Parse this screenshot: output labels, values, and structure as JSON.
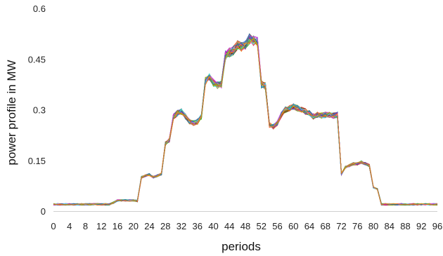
{
  "chart_data": {
    "type": "line",
    "title": "",
    "xlabel": "periods",
    "ylabel": "power profile in MW",
    "xlim": [
      0,
      96
    ],
    "ylim": [
      0,
      0.6
    ],
    "x_ticks": [
      0,
      4,
      8,
      12,
      16,
      20,
      24,
      28,
      32,
      36,
      40,
      44,
      48,
      52,
      56,
      60,
      64,
      68,
      72,
      76,
      80,
      84,
      88,
      92,
      96
    ],
    "y_ticks": [
      {
        "value": 0,
        "label": "0"
      },
      {
        "value": 0.15,
        "label": "0.15"
      },
      {
        "value": 0.3,
        "label": "0.3"
      },
      {
        "value": 0.45,
        "label": "0.45"
      },
      {
        "value": 0.6,
        "label": "0.6"
      }
    ],
    "grid": false,
    "legend": "none",
    "series_count": 30,
    "series_colors": [
      "#e6194b",
      "#3cb44b",
      "#4363d8",
      "#f58231",
      "#911eb4",
      "#46f0f0",
      "#f032e6",
      "#7fbf00",
      "#1f77b4",
      "#ff7f0e",
      "#2ca02c",
      "#d62728",
      "#9467bd",
      "#8c564b",
      "#e377c2",
      "#17becf",
      "#bcbd22",
      "#00a0b0",
      "#808000",
      "#800000"
    ],
    "mean_profile": {
      "x": [
        0,
        1,
        2,
        3,
        4,
        5,
        6,
        7,
        8,
        9,
        10,
        11,
        12,
        13,
        14,
        15,
        16,
        17,
        18,
        19,
        20,
        21,
        22,
        23,
        24,
        25,
        26,
        27,
        28,
        29,
        30,
        31,
        32,
        33,
        34,
        35,
        36,
        37,
        38,
        39,
        40,
        41,
        42,
        43,
        44,
        45,
        46,
        47,
        48,
        49,
        50,
        51,
        52,
        53,
        54,
        55,
        56,
        57,
        58,
        59,
        60,
        61,
        62,
        63,
        64,
        65,
        66,
        67,
        68,
        69,
        70,
        71,
        72,
        73,
        74,
        75,
        76,
        77,
        78,
        79,
        80,
        81,
        82,
        83,
        84,
        85,
        86,
        87,
        88,
        89,
        90,
        91,
        92,
        93,
        94,
        95,
        96
      ],
      "y": [
        0.02,
        0.02,
        0.02,
        0.02,
        0.02,
        0.02,
        0.02,
        0.02,
        0.02,
        0.02,
        0.02,
        0.02,
        0.02,
        0.02,
        0.02,
        0.025,
        0.032,
        0.032,
        0.032,
        0.032,
        0.032,
        0.03,
        0.1,
        0.105,
        0.108,
        0.1,
        0.105,
        0.11,
        0.2,
        0.21,
        0.28,
        0.29,
        0.295,
        0.28,
        0.265,
        0.26,
        0.265,
        0.28,
        0.385,
        0.395,
        0.38,
        0.372,
        0.375,
        0.46,
        0.47,
        0.475,
        0.49,
        0.485,
        0.49,
        0.51,
        0.505,
        0.5,
        0.375,
        0.37,
        0.255,
        0.25,
        0.26,
        0.285,
        0.3,
        0.305,
        0.31,
        0.305,
        0.3,
        0.295,
        0.29,
        0.28,
        0.285,
        0.283,
        0.285,
        0.285,
        0.282,
        0.285,
        0.11,
        0.13,
        0.135,
        0.14,
        0.14,
        0.145,
        0.14,
        0.135,
        0.07,
        0.065,
        0.02,
        0.02,
        0.02,
        0.02,
        0.02,
        0.02,
        0.02,
        0.02,
        0.02,
        0.02,
        0.02,
        0.02,
        0.02,
        0.02,
        0.02
      ]
    }
  }
}
